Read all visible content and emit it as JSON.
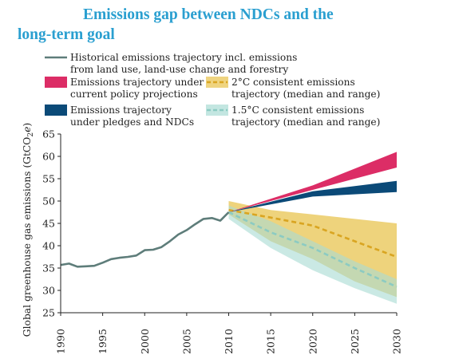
{
  "title": {
    "line1": "Emissions gap between NDCs and the",
    "line2": "long-term goal"
  },
  "colors": {
    "historical": "#5e7d7a",
    "current_policy": "#dc2d66",
    "pledges": "#0b4a78",
    "two_c_fill": "#e8c24a",
    "two_c_line": "#d9a521",
    "one_five_fill": "#a9dbd4",
    "one_five_line": "#8ccbc2",
    "title": "#2a9fd0"
  },
  "chart_data": {
    "type": "line",
    "title": "Emissions gap between NDCs and the long-term goal",
    "xlabel": "",
    "ylabel": "Global greenhouse gas emissions (GtCO2e)",
    "xlim": [
      1990,
      2030
    ],
    "ylim": [
      25,
      65
    ],
    "x_ticks": [
      1990,
      1995,
      2000,
      2005,
      2010,
      2015,
      2020,
      2025,
      2030
    ],
    "y_ticks": [
      25,
      30,
      35,
      40,
      45,
      50,
      55,
      60,
      65
    ],
    "grid": false,
    "legend_position": "top-left",
    "series": [
      {
        "name": "Historical emissions trajectory incl. emissions from land use, land-use change and forestry",
        "kind": "line",
        "points": [
          [
            1990,
            35.7
          ],
          [
            1991,
            36.0
          ],
          [
            1992,
            35.3
          ],
          [
            1993,
            35.4
          ],
          [
            1994,
            35.5
          ],
          [
            1995,
            36.2
          ],
          [
            1996,
            37.0
          ],
          [
            1997,
            37.3
          ],
          [
            1998,
            37.5
          ],
          [
            1999,
            37.8
          ],
          [
            2000,
            39.0
          ],
          [
            2001,
            39.1
          ],
          [
            2002,
            39.7
          ],
          [
            2003,
            41.0
          ],
          [
            2004,
            42.5
          ],
          [
            2005,
            43.5
          ],
          [
            2006,
            44.8
          ],
          [
            2007,
            46.0
          ],
          [
            2008,
            46.2
          ],
          [
            2009,
            45.6
          ],
          [
            2010,
            47.5
          ]
        ]
      },
      {
        "name": "Emissions trajectory under current policy projections",
        "kind": "band",
        "x": [
          2010,
          2020,
          2030
        ],
        "low": [
          47.5,
          52.5,
          57.5
        ],
        "high": [
          47.5,
          53.5,
          61.0
        ]
      },
      {
        "name": "Emissions trajectory under pledges and NDCs",
        "kind": "band",
        "x": [
          2010,
          2020,
          2030
        ],
        "low": [
          47.5,
          51.0,
          52.0
        ],
        "high": [
          47.5,
          52.2,
          54.5
        ]
      },
      {
        "name": "2°C consistent emissions trajectory (median and range)",
        "kind": "band_median",
        "x": [
          2010,
          2015,
          2020,
          2025,
          2030
        ],
        "low": [
          47.0,
          41.0,
          37.0,
          32.0,
          28.5
        ],
        "high": [
          50.0,
          48.0,
          47.0,
          46.0,
          45.0
        ],
        "median": [
          48.0,
          46.3,
          44.5,
          41.0,
          37.5
        ]
      },
      {
        "name": "1.5°C consistent emissions trajectory (median and range)",
        "kind": "band_median",
        "x": [
          2010,
          2015,
          2020,
          2025,
          2030
        ],
        "low": [
          46.0,
          39.5,
          34.5,
          30.5,
          27.0
        ],
        "high": [
          49.0,
          45.5,
          41.0,
          36.5,
          32.5
        ],
        "median": [
          47.5,
          43.0,
          39.5,
          35.0,
          30.8
        ]
      }
    ],
    "legend": [
      {
        "label_lines": [
          "Historical emissions trajectory incl. emissions",
          "from land use, land-use change and forestry"
        ],
        "swatch": "line",
        "color": "#5e7d7a"
      },
      {
        "label_lines": [
          "Emissions trajectory under",
          "current policy projections"
        ],
        "swatch": "block",
        "color": "#dc2d66"
      },
      {
        "label_lines": [
          "Emissions trajectory",
          "under pledges and NDCs"
        ],
        "swatch": "block",
        "color": "#0b4a78"
      },
      {
        "label_lines": [
          "2°C consistent emissions",
          "trajectory (median and range)"
        ],
        "swatch": "dashed-band",
        "color": "#e8c24a",
        "line_color": "#d9a521"
      },
      {
        "label_lines": [
          "1.5°C consistent emissions",
          "trajectory (median and range)"
        ],
        "swatch": "dashed-band",
        "color": "#a9dbd4",
        "line_color": "#8ccbc2"
      }
    ]
  }
}
